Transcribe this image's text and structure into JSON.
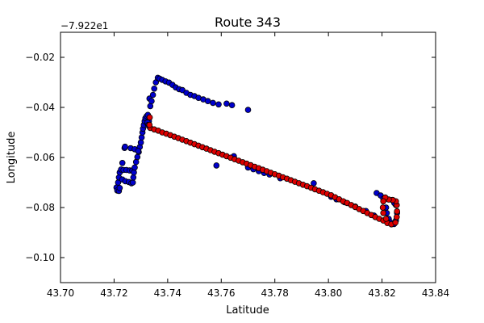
{
  "chart_data": {
    "type": "scatter",
    "title": "Route 343",
    "xlabel": "Latitude",
    "ylabel": "Longitude",
    "y_offset_label": "−7.922e1",
    "xlim": [
      43.7,
      43.84
    ],
    "ylim": [
      -0.11,
      -0.01
    ],
    "xticks": [
      43.7,
      43.72,
      43.74,
      43.76,
      43.78,
      43.8,
      43.82,
      43.84
    ],
    "xtick_labels": [
      "43.70",
      "43.72",
      "43.74",
      "43.76",
      "43.78",
      "43.80",
      "43.82",
      "43.84"
    ],
    "yticks": [
      -0.1,
      -0.08,
      -0.06,
      -0.04,
      -0.02
    ],
    "ytick_labels": [
      "−0.10",
      "−0.08",
      "−0.06",
      "−0.04",
      "−0.02"
    ],
    "grid": false,
    "series": [
      {
        "color": "#0000cc",
        "points": [
          [
            43.7209,
            -0.072
          ],
          [
            43.7212,
            -0.0732
          ],
          [
            43.7218,
            -0.0734
          ],
          [
            43.7221,
            -0.0722
          ],
          [
            43.7215,
            -0.07
          ],
          [
            43.7218,
            -0.068
          ],
          [
            43.7221,
            -0.066
          ],
          [
            43.7226,
            -0.0648
          ],
          [
            43.7235,
            -0.065
          ],
          [
            43.7246,
            -0.065
          ],
          [
            43.7258,
            -0.0652
          ],
          [
            43.7268,
            -0.0652
          ],
          [
            43.7231,
            -0.0688
          ],
          [
            43.7242,
            -0.0695
          ],
          [
            43.7255,
            -0.0698
          ],
          [
            43.7265,
            -0.0703
          ],
          [
            43.727,
            -0.07
          ],
          [
            43.7272,
            -0.068
          ],
          [
            43.7274,
            -0.066
          ],
          [
            43.7277,
            -0.064
          ],
          [
            43.7282,
            -0.0618
          ],
          [
            43.7287,
            -0.0598
          ],
          [
            43.7292,
            -0.0578
          ],
          [
            43.7296,
            -0.0558
          ],
          [
            43.73,
            -0.054
          ],
          [
            43.7303,
            -0.052
          ],
          [
            43.7306,
            -0.05
          ],
          [
            43.7308,
            -0.0485
          ],
          [
            43.7311,
            -0.047
          ],
          [
            43.7314,
            -0.0455
          ],
          [
            43.7317,
            -0.0443
          ],
          [
            43.7322,
            -0.0435
          ],
          [
            43.7326,
            -0.043
          ],
          [
            43.7325,
            -0.0465
          ],
          [
            43.733,
            -0.0455
          ],
          [
            43.7231,
            -0.0622
          ],
          [
            43.7239,
            -0.0562
          ],
          [
            43.7241,
            -0.0557
          ],
          [
            43.7262,
            -0.0563
          ],
          [
            43.7277,
            -0.0567
          ],
          [
            43.729,
            -0.0574
          ],
          [
            43.7332,
            -0.0365
          ],
          [
            43.7335,
            -0.0395
          ],
          [
            43.734,
            -0.0375
          ],
          [
            43.7345,
            -0.035
          ],
          [
            43.735,
            -0.0325
          ],
          [
            43.7356,
            -0.03
          ],
          [
            43.7363,
            -0.0282
          ],
          [
            43.737,
            -0.0285
          ],
          [
            43.738,
            -0.029
          ],
          [
            43.7392,
            -0.0296
          ],
          [
            43.7405,
            -0.0301
          ],
          [
            43.7418,
            -0.031
          ],
          [
            43.743,
            -0.032
          ],
          [
            43.7443,
            -0.0327
          ],
          [
            43.7455,
            -0.0331
          ],
          [
            43.747,
            -0.0342
          ],
          [
            43.7485,
            -0.035
          ],
          [
            43.75,
            -0.0355
          ],
          [
            43.7515,
            -0.0362
          ],
          [
            43.7533,
            -0.0368
          ],
          [
            43.755,
            -0.0375
          ],
          [
            43.7569,
            -0.0382
          ],
          [
            43.759,
            -0.0388
          ],
          [
            43.762,
            -0.0385
          ],
          [
            43.764,
            -0.0391
          ],
          [
            43.77,
            -0.041
          ],
          [
            43.7647,
            -0.0595
          ],
          [
            43.7582,
            -0.0632
          ],
          [
            43.7945,
            -0.0703
          ],
          [
            43.77,
            -0.064
          ],
          [
            43.772,
            -0.0647
          ],
          [
            43.774,
            -0.0655
          ],
          [
            43.776,
            -0.0662
          ],
          [
            43.778,
            -0.0668
          ],
          [
            43.782,
            -0.0683
          ],
          [
            43.801,
            -0.0757
          ],
          [
            43.803,
            -0.0767
          ],
          [
            43.806,
            -0.0779
          ],
          [
            43.81,
            -0.0796
          ],
          [
            43.814,
            -0.0814
          ],
          [
            43.817,
            -0.0832
          ],
          [
            43.818,
            -0.0742
          ],
          [
            43.8195,
            -0.0752
          ],
          [
            43.8205,
            -0.0765
          ],
          [
            43.8215,
            -0.08
          ],
          [
            43.8218,
            -0.0822
          ],
          [
            43.8225,
            -0.0845
          ],
          [
            43.8232,
            -0.086
          ],
          [
            43.8245,
            -0.0866
          ],
          [
            43.8252,
            -0.0852
          ],
          [
            43.8256,
            -0.0822
          ],
          [
            43.8252,
            -0.079
          ],
          [
            43.8246,
            -0.0782
          ],
          [
            43.8238,
            -0.077
          ],
          [
            43.7325,
            -0.046
          ],
          [
            43.7328,
            -0.047
          ],
          [
            43.733,
            -0.0475
          ]
        ]
      },
      {
        "color": "#dd0000",
        "points": [
          [
            43.7335,
            -0.0482
          ],
          [
            43.735,
            -0.0488
          ],
          [
            43.7365,
            -0.0493
          ],
          [
            43.738,
            -0.05
          ],
          [
            43.7395,
            -0.0505
          ],
          [
            43.741,
            -0.0511
          ],
          [
            43.7425,
            -0.0517
          ],
          [
            43.744,
            -0.0523
          ],
          [
            43.7455,
            -0.0529
          ],
          [
            43.747,
            -0.0535
          ],
          [
            43.7485,
            -0.0541
          ],
          [
            43.75,
            -0.0547
          ],
          [
            43.7515,
            -0.0553
          ],
          [
            43.753,
            -0.0559
          ],
          [
            43.7545,
            -0.0565
          ],
          [
            43.756,
            -0.0571
          ],
          [
            43.7575,
            -0.0577
          ],
          [
            43.759,
            -0.0583
          ],
          [
            43.7605,
            -0.0589
          ],
          [
            43.762,
            -0.0595
          ],
          [
            43.7635,
            -0.0601
          ],
          [
            43.765,
            -0.0607
          ],
          [
            43.7665,
            -0.0613
          ],
          [
            43.768,
            -0.0619
          ],
          [
            43.7695,
            -0.0625
          ],
          [
            43.771,
            -0.0631
          ],
          [
            43.7725,
            -0.0637
          ],
          [
            43.774,
            -0.0643
          ],
          [
            43.7755,
            -0.0649
          ],
          [
            43.777,
            -0.0655
          ],
          [
            43.7785,
            -0.0661
          ],
          [
            43.78,
            -0.0667
          ],
          [
            43.7815,
            -0.0673
          ],
          [
            43.783,
            -0.0679
          ],
          [
            43.7845,
            -0.0685
          ],
          [
            43.786,
            -0.0691
          ],
          [
            43.7875,
            -0.0697
          ],
          [
            43.789,
            -0.0703
          ],
          [
            43.7905,
            -0.0709
          ],
          [
            43.792,
            -0.0715
          ],
          [
            43.7935,
            -0.0721
          ],
          [
            43.795,
            -0.0727
          ],
          [
            43.7965,
            -0.0733
          ],
          [
            43.798,
            -0.0739
          ],
          [
            43.7995,
            -0.0745
          ],
          [
            43.801,
            -0.0751
          ],
          [
            43.8025,
            -0.0759
          ],
          [
            43.804,
            -0.0767
          ],
          [
            43.8055,
            -0.0775
          ],
          [
            43.807,
            -0.0782
          ],
          [
            43.8085,
            -0.079
          ],
          [
            43.81,
            -0.0798
          ],
          [
            43.8115,
            -0.0806
          ],
          [
            43.813,
            -0.0814
          ],
          [
            43.8145,
            -0.0822
          ],
          [
            43.816,
            -0.083
          ],
          [
            43.8175,
            -0.0838
          ],
          [
            43.819,
            -0.0845
          ],
          [
            43.8205,
            -0.0852
          ],
          [
            43.822,
            -0.0862
          ],
          [
            43.8235,
            -0.0867
          ],
          [
            43.825,
            -0.086
          ],
          [
            43.8255,
            -0.0838
          ],
          [
            43.8256,
            -0.0815
          ],
          [
            43.8255,
            -0.079
          ],
          [
            43.8252,
            -0.0775
          ],
          [
            43.824,
            -0.077
          ],
          [
            43.8225,
            -0.0768
          ],
          [
            43.8212,
            -0.076
          ],
          [
            43.8205,
            -0.0775
          ],
          [
            43.8203,
            -0.08
          ],
          [
            43.8205,
            -0.0822
          ],
          [
            43.8215,
            -0.0845
          ],
          [
            43.7332,
            -0.047
          ],
          [
            43.7333,
            -0.044
          ]
        ]
      }
    ]
  }
}
